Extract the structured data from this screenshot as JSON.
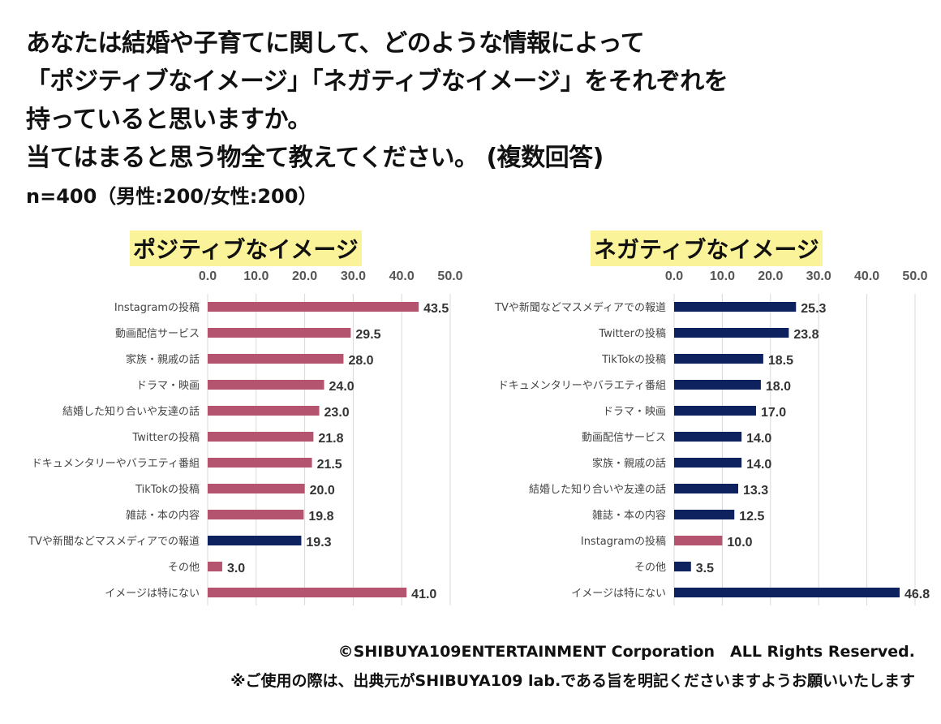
{
  "title": {
    "lines": [
      "あなたは結婚や子育てに関して、どのような情報によって",
      "「ポジティブなイメージ」「ネガティブなイメージ」をそれぞれを",
      "持っていると思いますか。",
      "当てはまると思う物全て教えてください。 (複数回答)"
    ],
    "sample": "n=400（男性:200/女性:200）"
  },
  "colors": {
    "pink": "#B5546F",
    "navy": "#0F2260",
    "highlight": "#FBF39A"
  },
  "chart_data": [
    {
      "type": "bar",
      "orientation": "horizontal",
      "title": "ポジティブなイメージ",
      "xlim": [
        0,
        50
      ],
      "ticks": [
        "0.0",
        "10.0",
        "20.0",
        "30.0",
        "40.0",
        "50.0"
      ],
      "categories": [
        "Instagramの投稿",
        "動画配信サービス",
        "家族・親戚の話",
        "ドラマ・映画",
        "結婚した知り合いや友達の話",
        "Twitterの投稿",
        "ドキュメンタリーやバラエティ番組",
        "TikTokの投稿",
        "雑誌・本の内容",
        "TVや新聞などマスメディアでの報道",
        "その他",
        "イメージは特にない"
      ],
      "values": [
        43.5,
        29.5,
        28.0,
        24.0,
        23.0,
        21.8,
        21.5,
        20.0,
        19.8,
        19.3,
        3.0,
        41.0
      ],
      "bar_colors": [
        "pink",
        "pink",
        "pink",
        "pink",
        "pink",
        "pink",
        "pink",
        "pink",
        "pink",
        "navy",
        "pink",
        "pink"
      ]
    },
    {
      "type": "bar",
      "orientation": "horizontal",
      "title": "ネガティブなイメージ",
      "xlim": [
        0,
        50
      ],
      "ticks": [
        "0.0",
        "10.0",
        "20.0",
        "30.0",
        "40.0",
        "50.0"
      ],
      "categories": [
        "TVや新聞などマスメディアでの報道",
        "Twitterの投稿",
        "TikTokの投稿",
        "ドキュメンタリーやバラエティ番組",
        "ドラマ・映画",
        "動画配信サービス",
        "家族・親戚の話",
        "結婚した知り合いや友達の話",
        "雑誌・本の内容",
        "Instagramの投稿",
        "その他",
        "イメージは特にない"
      ],
      "values": [
        25.3,
        23.8,
        18.5,
        18.0,
        17.0,
        14.0,
        14.0,
        13.3,
        12.5,
        10.0,
        3.5,
        46.8
      ],
      "bar_colors": [
        "navy",
        "navy",
        "navy",
        "navy",
        "navy",
        "navy",
        "navy",
        "navy",
        "navy",
        "pink",
        "navy",
        "navy"
      ]
    }
  ],
  "footer": {
    "copyright": "©SHIBUYA109ENTERTAINMENT Corporation　ALL Rights Reserved.",
    "note": "※ご使用の際は、出典元がSHIBUYA109 lab.である旨を明記くださいますようお願いいたします"
  }
}
